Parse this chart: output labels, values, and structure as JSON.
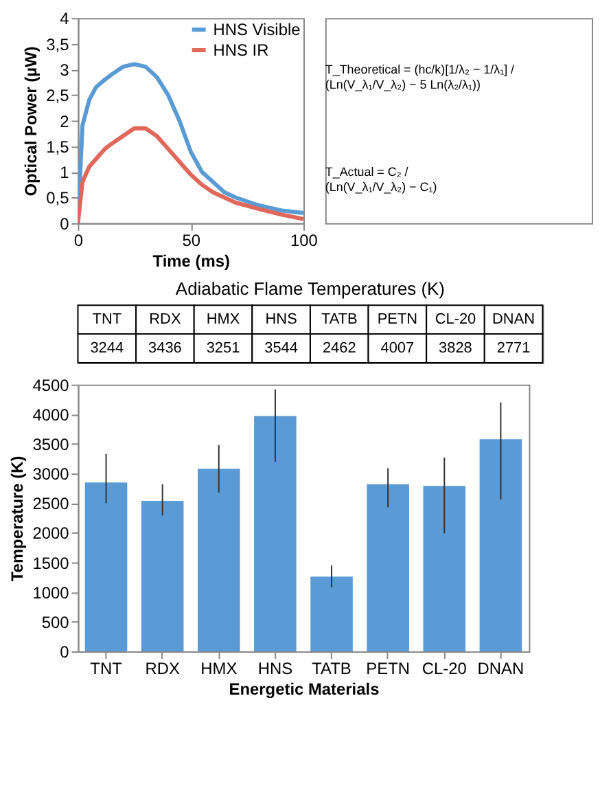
{
  "chart_data": [
    {
      "type": "line",
      "xlabel": "Time (ms)",
      "ylabel": "Optical Power (µW)",
      "x": [
        0,
        2,
        5,
        8,
        12,
        15,
        20,
        25,
        30,
        35,
        40,
        45,
        50,
        55,
        60,
        65,
        70,
        80,
        90,
        100
      ],
      "series": [
        {
          "name": "HNS Visible",
          "color": "#5b9bd5",
          "values": [
            0,
            1.9,
            2.4,
            2.65,
            2.8,
            2.9,
            3.05,
            3.1,
            3.05,
            2.85,
            2.5,
            2.0,
            1.4,
            1.0,
            0.8,
            0.6,
            0.5,
            0.35,
            0.25,
            0.2
          ]
        },
        {
          "name": "HNS IR",
          "color": "#e0675a",
          "values": [
            0,
            0.8,
            1.1,
            1.25,
            1.45,
            1.55,
            1.7,
            1.85,
            1.85,
            1.7,
            1.45,
            1.2,
            0.95,
            0.75,
            0.6,
            0.5,
            0.4,
            0.28,
            0.17,
            0.08
          ]
        }
      ],
      "xlim": [
        0,
        100
      ],
      "xticks": [
        0,
        50,
        100
      ],
      "ylim": [
        0,
        4
      ],
      "yticks": [
        0,
        {
          "value": 0.5,
          "label": "0,5"
        },
        1,
        {
          "value": 1.5,
          "label": "1,5"
        },
        2,
        {
          "value": 2.5,
          "label": "2,5"
        },
        3,
        {
          "value": 3.5,
          "label": "3,5"
        },
        4
      ],
      "grid": false,
      "legend": "top right",
      "marker": "none",
      "line_style": "solid",
      "annotations": [
        "T_Theoretical = (hc/k)[1/λ₂ − 1/λ₁] / (Ln(V_λ₁/V_λ₂) − 5 Ln(λ₂/λ₁))",
        "T_Actual = C₂ / (Ln(V_λ₁/V_λ₂) − C₁)"
      ]
    },
    {
      "type": "other",
      "title": "Adiabatic Flame Temperatures (K)",
      "categories": [
        "TNT",
        "RDX",
        "HMX",
        "HNS",
        "TATB",
        "PETN",
        "CL-20",
        "DNAN"
      ],
      "values": [
        3244,
        3436,
        3251,
        3544,
        2462,
        4007,
        3828,
        2771
      ],
      "data_labels": true
    },
    {
      "type": "bar",
      "xlabel": "Energetic Materials",
      "ylabel": "Temperature (K)",
      "categories": [
        "TNT",
        "RDX",
        "HMX",
        "HNS",
        "TATB",
        "PETN",
        "CL-20",
        "DNAN"
      ],
      "values": [
        2850,
        2540,
        3080,
        3970,
        1260,
        2820,
        2790,
        3580
      ],
      "color": "#5b9bd5",
      "errors": [
        [
          2500,
          3330
        ],
        [
          2290,
          2820
        ],
        [
          2680,
          3480
        ],
        [
          3200,
          4420
        ],
        [
          1080,
          1450
        ],
        [
          2430,
          3090
        ],
        [
          1990,
          3270
        ],
        [
          2560,
          4200
        ]
      ],
      "ylim": [
        0,
        4500
      ],
      "yticks": [
        0,
        500,
        1000,
        1500,
        2000,
        2500,
        3000,
        3500,
        4000,
        4500
      ],
      "grid": false
    }
  ]
}
